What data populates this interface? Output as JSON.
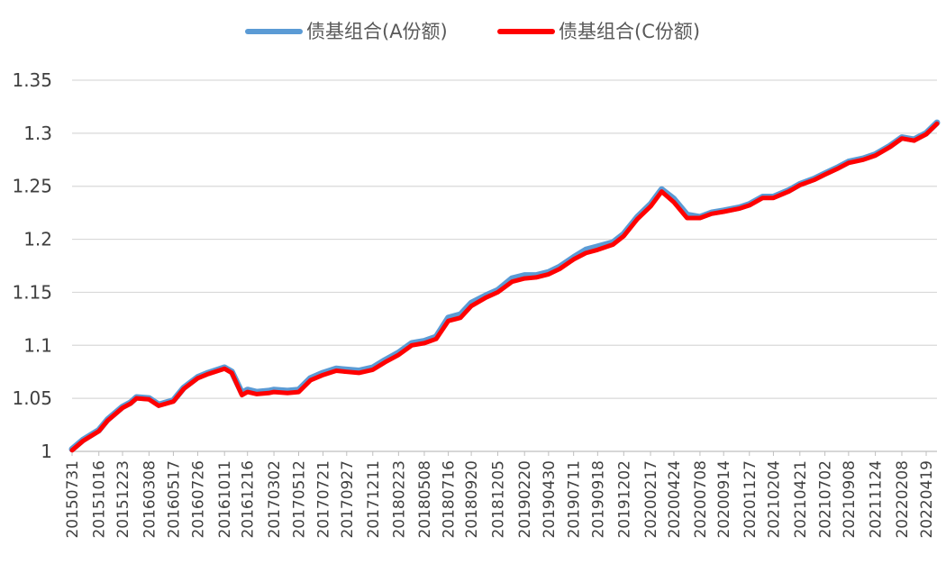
{
  "chart_data": {
    "type": "line",
    "title": "",
    "xlabel": "",
    "ylabel": "",
    "ylim": [
      1,
      1.35
    ],
    "y_ticks": [
      "1",
      "1.05",
      "1.1",
      "1.15",
      "1.2",
      "1.25",
      "1.3",
      "1.35"
    ],
    "grid": "horizontal",
    "legend": "top",
    "x_ticks": [
      "20150731",
      "20151016",
      "20151223",
      "20160308",
      "20160517",
      "20160726",
      "20161011",
      "20161216",
      "20170302",
      "20170512",
      "20170721",
      "20170927",
      "20171211",
      "20180223",
      "20180508",
      "20180716",
      "20180920",
      "20181205",
      "20190220",
      "20190430",
      "20190711",
      "20190918",
      "20191202",
      "20200217",
      "20200424",
      "20200708",
      "20200914",
      "20201127",
      "20210204",
      "20210421",
      "20210702",
      "20210908",
      "20211124",
      "20220208",
      "20220419"
    ],
    "series": [
      {
        "name": "债基组合(A份额)",
        "color": "#5B9BD5",
        "x": [
          "20150731",
          "20150901",
          "20151016",
          "20151110",
          "20151223",
          "20160115",
          "20160201",
          "20160308",
          "20160405",
          "20160517",
          "20160616",
          "20160726",
          "20160825",
          "20161011",
          "20161101",
          "20161130",
          "20161216",
          "20170112",
          "20170215",
          "20170302",
          "20170410",
          "20170512",
          "20170615",
          "20170721",
          "20170828",
          "20170927",
          "20171101",
          "20171211",
          "20180115",
          "20180223",
          "20180402",
          "20180508",
          "20180611",
          "20180716",
          "20180820",
          "20180920",
          "20181101",
          "20181205",
          "20190115",
          "20190220",
          "20190325",
          "20190430",
          "20190601",
          "20190711",
          "20190815",
          "20190918",
          "20191101",
          "20191202",
          "20200110",
          "20200217",
          "20200320",
          "20200424",
          "20200601",
          "20200708",
          "20200810",
          "20200914",
          "20201030",
          "20201127",
          "20210104",
          "20210204",
          "20210320",
          "20210421",
          "20210601",
          "20210702",
          "20210810",
          "20210908",
          "20211020",
          "20211124",
          "20220105",
          "20220208",
          "20220315",
          "20220419",
          "20220520"
        ],
        "values": [
          1.002,
          1.011,
          1.02,
          1.03,
          1.042,
          1.046,
          1.051,
          1.05,
          1.044,
          1.048,
          1.06,
          1.07,
          1.074,
          1.079,
          1.075,
          1.055,
          1.058,
          1.056,
          1.057,
          1.058,
          1.057,
          1.058,
          1.069,
          1.074,
          1.078,
          1.077,
          1.076,
          1.079,
          1.086,
          1.093,
          1.102,
          1.104,
          1.108,
          1.126,
          1.129,
          1.14,
          1.147,
          1.152,
          1.163,
          1.166,
          1.166,
          1.169,
          1.174,
          1.183,
          1.19,
          1.193,
          1.197,
          1.205,
          1.221,
          1.233,
          1.247,
          1.238,
          1.223,
          1.221,
          1.225,
          1.227,
          1.23,
          1.233,
          1.24,
          1.24,
          1.246,
          1.252,
          1.257,
          1.262,
          1.268,
          1.273,
          1.276,
          1.28,
          1.288,
          1.296,
          1.294,
          1.3,
          1.31
        ]
      },
      {
        "name": "债基组合(C份额)",
        "color": "#FF0000",
        "x": [
          "20150731",
          "20150901",
          "20151016",
          "20151110",
          "20151223",
          "20160115",
          "20160201",
          "20160308",
          "20160405",
          "20160517",
          "20160616",
          "20160726",
          "20160825",
          "20161011",
          "20161101",
          "20161130",
          "20161216",
          "20170112",
          "20170215",
          "20170302",
          "20170410",
          "20170512",
          "20170615",
          "20170721",
          "20170828",
          "20170927",
          "20171101",
          "20171211",
          "20180115",
          "20180223",
          "20180402",
          "20180508",
          "20180611",
          "20180716",
          "20180820",
          "20180920",
          "20181101",
          "20181205",
          "20190115",
          "20190220",
          "20190325",
          "20190430",
          "20190601",
          "20190711",
          "20190815",
          "20190918",
          "20191101",
          "20191202",
          "20200110",
          "20200217",
          "20200320",
          "20200424",
          "20200601",
          "20200708",
          "20200810",
          "20200914",
          "20201030",
          "20201127",
          "20210104",
          "20210204",
          "20210320",
          "20210421",
          "20210601",
          "20210702",
          "20210810",
          "20210908",
          "20211020",
          "20211124",
          "20220105",
          "20220208",
          "20220315",
          "20220419",
          "20220520"
        ],
        "values": [
          1.001,
          1.01,
          1.019,
          1.029,
          1.041,
          1.045,
          1.05,
          1.049,
          1.043,
          1.047,
          1.059,
          1.069,
          1.073,
          1.078,
          1.074,
          1.053,
          1.056,
          1.054,
          1.055,
          1.056,
          1.055,
          1.056,
          1.067,
          1.072,
          1.076,
          1.075,
          1.074,
          1.077,
          1.084,
          1.091,
          1.1,
          1.102,
          1.106,
          1.123,
          1.126,
          1.137,
          1.145,
          1.15,
          1.16,
          1.163,
          1.164,
          1.167,
          1.172,
          1.181,
          1.187,
          1.19,
          1.195,
          1.203,
          1.219,
          1.231,
          1.245,
          1.235,
          1.22,
          1.22,
          1.224,
          1.226,
          1.229,
          1.232,
          1.239,
          1.239,
          1.245,
          1.251,
          1.256,
          1.261,
          1.267,
          1.272,
          1.275,
          1.279,
          1.287,
          1.295,
          1.293,
          1.299,
          1.309
        ]
      }
    ]
  }
}
